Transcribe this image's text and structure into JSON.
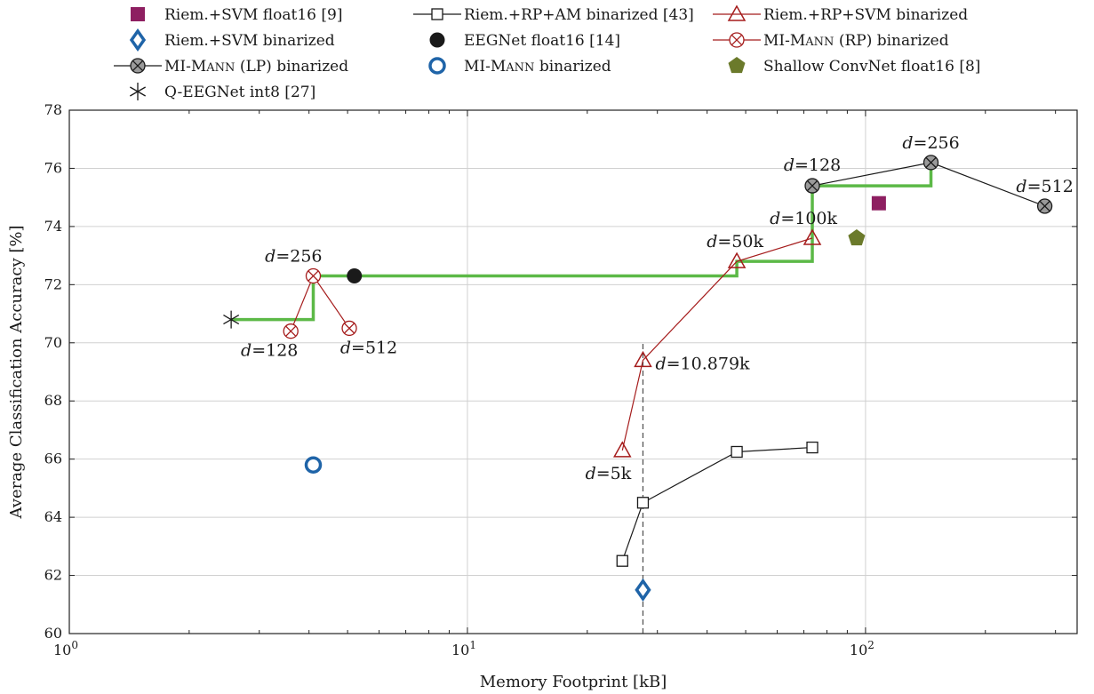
{
  "chart_data": {
    "type": "scatter",
    "xlabel": "Memory Footprint [kB]",
    "ylabel": "Average Classification Accuracy [%]",
    "xscale": "log",
    "xlim": [
      1,
      340
    ],
    "ylim": [
      60,
      78
    ],
    "x_ticks": [
      {
        "value": 1,
        "base": "10",
        "exp": "0"
      },
      {
        "value": 10,
        "base": "10",
        "exp": "1"
      },
      {
        "value": 100,
        "base": "10",
        "exp": "2"
      }
    ],
    "y_ticks": [
      60,
      62,
      64,
      66,
      68,
      70,
      72,
      74,
      76,
      78
    ],
    "grid": "major",
    "legend_position": "top",
    "series": [
      {
        "name": "Riem.+SVM float16 [9]",
        "marker": "square-filled",
        "color": "#8e1f61",
        "line": false,
        "x": [
          108
        ],
        "y": [
          74.8
        ]
      },
      {
        "name": "Riem.+RP+AM binarized [43]",
        "marker": "square-open",
        "color": "#1a1a1a",
        "line": true,
        "x": [
          24.5,
          27.6,
          47.5,
          73.5
        ],
        "y": [
          62.5,
          64.5,
          66.25,
          66.4
        ]
      },
      {
        "name": "Riem.+RP+SVM binarized",
        "marker": "triangle-open",
        "color": "#a51c1c",
        "line": true,
        "x": [
          24.5,
          27.6,
          47.5,
          73.5
        ],
        "y": [
          66.3,
          69.4,
          72.8,
          73.6
        ]
      },
      {
        "name": "Riem.+SVM binarized",
        "marker": "diamond-open",
        "color": "#1f64a8",
        "line": false,
        "x": [
          27.6
        ],
        "y": [
          61.5
        ]
      },
      {
        "name": "EEGNet float16 [14]",
        "marker": "circle-filled",
        "color": "#1a1a1a",
        "line": false,
        "x": [
          5.2
        ],
        "y": [
          72.3
        ]
      },
      {
        "name": "MI-MANN (RP) binarized",
        "marker": "circle-x",
        "color": "#a51c1c",
        "line": true,
        "x": [
          3.6,
          4.1,
          5.05
        ],
        "y": [
          70.4,
          72.3,
          70.5
        ]
      },
      {
        "name": "MI-MANN (LP) binarized",
        "marker": "circle-x-filled",
        "color": "#1a1a1a",
        "line": true,
        "x": [
          73.5,
          146,
          282
        ],
        "y": [
          75.4,
          76.2,
          74.7
        ]
      },
      {
        "name": "MI-MANN binarized",
        "marker": "circle-open",
        "color": "#1f64a8",
        "line": false,
        "x": [
          4.1
        ],
        "y": [
          65.8
        ]
      },
      {
        "name": "Shallow ConvNet float16 [8]",
        "marker": "pentagon-filled",
        "color": "#6b7a2b",
        "line": false,
        "x": [
          95
        ],
        "y": [
          73.6
        ]
      },
      {
        "name": "Q-EEGNet int8 [27]",
        "marker": "star",
        "color": "#1a1a1a",
        "line": false,
        "x": [
          2.55
        ],
        "y": [
          70.8
        ]
      }
    ],
    "pareto_front": {
      "color": "#5cb947",
      "x": [
        2.55,
        4.1,
        4.1,
        47.5,
        47.5,
        73.5,
        73.5,
        146,
        146
      ],
      "y": [
        70.8,
        70.8,
        72.3,
        72.3,
        72.8,
        72.8,
        75.4,
        75.4,
        76.2
      ]
    },
    "reference_line": {
      "x": 27.6,
      "style": "dashed",
      "y_range": [
        60,
        70
      ]
    },
    "annotations": [
      {
        "var": "d",
        "text": "=256",
        "x": 4.1,
        "y": 72.3,
        "pos": "above-left"
      },
      {
        "var": "d",
        "text": "=128",
        "x": 3.6,
        "y": 70.4,
        "pos": "below"
      },
      {
        "var": "d",
        "text": "=512",
        "x": 5.05,
        "y": 70.5,
        "pos": "below"
      },
      {
        "var": "d",
        "text": "=128",
        "x": 73.5,
        "y": 75.4,
        "pos": "above"
      },
      {
        "var": "d",
        "text": "=256",
        "x": 146,
        "y": 76.2,
        "pos": "above"
      },
      {
        "var": "d",
        "text": "=512",
        "x": 282,
        "y": 74.7,
        "pos": "above"
      },
      {
        "var": "d",
        "text": "=100k",
        "x": 73.5,
        "y": 73.6,
        "pos": "above-left"
      },
      {
        "var": "d",
        "text": "=50k",
        "x": 47.5,
        "y": 72.8,
        "pos": "above"
      },
      {
        "var": "d",
        "text": "=10.879k",
        "x": 27.6,
        "y": 69.4,
        "pos": "right"
      },
      {
        "var": "d",
        "text": "=5k",
        "x": 24.5,
        "y": 66.3,
        "pos": "below-left"
      }
    ]
  }
}
